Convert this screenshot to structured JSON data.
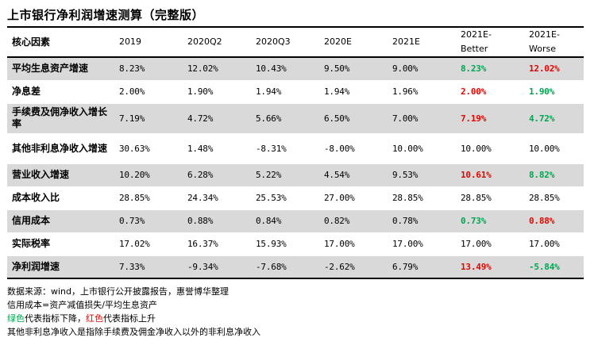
{
  "title": "上市银行净利润增速测算（完整版）",
  "headers": [
    "核心因素",
    "2019",
    "2020Q2",
    "2020Q3",
    "2020E",
    "2021E",
    "2021E-\nBetter",
    "2021E-\nWorse"
  ],
  "rows": [
    {
      "label": "平均生息资产增速",
      "shade": true,
      "values": [
        "8.23%",
        "12.02%",
        "10.43%",
        "9.50%",
        "9.00%",
        "8.23%",
        "12.02%"
      ],
      "colors": [
        "",
        "",
        "",
        "",
        "",
        "green",
        "red"
      ]
    },
    {
      "label": "净息差",
      "shade": false,
      "values": [
        "2.00%",
        "1.90%",
        "1.94%",
        "1.94%",
        "1.96%",
        "2.00%",
        "1.90%"
      ],
      "colors": [
        "",
        "",
        "",
        "",
        "",
        "red",
        "green"
      ]
    },
    {
      "label": "手续费及佣净收入增长率",
      "shade": true,
      "values": [
        "7.19%",
        "4.72%",
        "5.66%",
        "6.50%",
        "7.00%",
        "7.19%",
        "4.72%"
      ],
      "colors": [
        "",
        "",
        "",
        "",
        "",
        "red",
        "green"
      ]
    },
    {
      "label": "其他非利息净收入增速",
      "shade": false,
      "values": [
        "30.63%",
        "1.48%",
        "-8.31%",
        "-8.00%",
        "10.00%",
        "10.00%",
        "10.00%"
      ],
      "colors": [
        "",
        "",
        "",
        "",
        "",
        "",
        ""
      ]
    },
    {
      "label": "营业收入增速",
      "shade": true,
      "values": [
        "10.20%",
        "6.28%",
        "5.22%",
        "4.54%",
        "9.53%",
        "10.61%",
        "8.82%"
      ],
      "colors": [
        "",
        "",
        "",
        "",
        "",
        "red",
        "green"
      ]
    },
    {
      "label": "成本收入比",
      "shade": false,
      "values": [
        "28.85%",
        "24.34%",
        "25.53%",
        "27.00%",
        "28.85%",
        "28.85%",
        "28.85%"
      ],
      "colors": [
        "",
        "",
        "",
        "",
        "",
        "",
        ""
      ]
    },
    {
      "label": "信用成本",
      "shade": true,
      "values": [
        "0.73%",
        "0.88%",
        "0.84%",
        "0.82%",
        "0.78%",
        "0.73%",
        "0.88%"
      ],
      "colors": [
        "",
        "",
        "",
        "",
        "",
        "green",
        "red"
      ]
    },
    {
      "label": "实际税率",
      "shade": false,
      "values": [
        "17.02%",
        "16.37%",
        "15.93%",
        "17.00%",
        "17.00%",
        "17.00%",
        "17.00%"
      ],
      "colors": [
        "",
        "",
        "",
        "",
        "",
        "",
        ""
      ]
    },
    {
      "label": "净利润增速",
      "shade": true,
      "values": [
        "7.33%",
        "-9.34%",
        "-7.68%",
        "-2.62%",
        "6.79%",
        "13.49%",
        "-5.84%"
      ],
      "colors": [
        "",
        "",
        "",
        "",
        "",
        "red",
        "green"
      ]
    }
  ],
  "notes": {
    "source": "数据来源：wind，上市银行公开披露报告，惠誉博华整理",
    "credit_cost": "信用成本=资产减值损失/平均生息资产",
    "legend_green": "绿色",
    "legend_mid": "代表指标下降，",
    "legend_red": "红色",
    "legend_end": "代表指标上升",
    "other_income": "其他非利息净收入是指除手续费及佣金净收入以外的非利息净收入"
  },
  "colors": {
    "green": "#00a651",
    "red": "#e10600",
    "shade": "#d9d9d9"
  }
}
